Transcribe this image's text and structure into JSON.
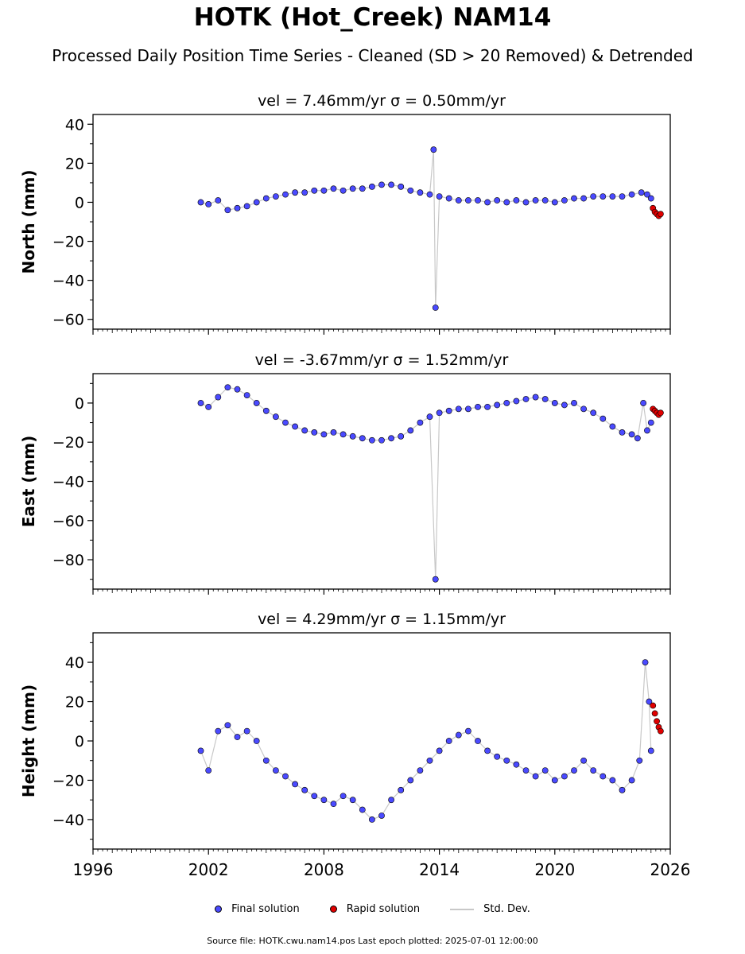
{
  "figure": {
    "title": "HOTK (Hot_Creek) NAM14",
    "subtitle": "Processed Daily Position Time Series - Cleaned (SD > 20 Removed) & Detrended",
    "footer": "Source file: HOTK.cwu.nam14.pos  Last epoch plotted: 2025-07-01 12:00:00"
  },
  "legend": {
    "final_label": "Final solution",
    "rapid_label": "Rapid solution",
    "sd_label": "Std. Dev.",
    "final_color": "#4a4aff",
    "rapid_color": "#e00000",
    "sd_color": "#c8c8c8"
  },
  "chart_data": [
    {
      "type": "scatter",
      "title": "vel = 7.46mm/yr   σ = 0.50mm/yr",
      "ylabel": "North (mm)",
      "xlim": [
        1996,
        2026
      ],
      "ylim": [
        -65,
        45
      ],
      "xticks": [
        1996,
        2002,
        2008,
        2014,
        2020,
        2026
      ],
      "yticks": [
        40,
        20,
        0,
        -20,
        -40,
        -60
      ],
      "series": [
        {
          "name": "Final solution",
          "x": [
            2001.6,
            2002.0,
            2002.5,
            2003.0,
            2003.5,
            2004.0,
            2004.5,
            2005.0,
            2005.5,
            2006.0,
            2006.5,
            2007.0,
            2007.5,
            2008.0,
            2008.5,
            2009.0,
            2009.5,
            2010.0,
            2010.5,
            2011.0,
            2011.5,
            2012.0,
            2012.5,
            2013.0,
            2013.5,
            2013.7,
            2013.8,
            2014.0,
            2014.5,
            2015.0,
            2015.5,
            2016.0,
            2016.5,
            2017.0,
            2017.5,
            2018.0,
            2018.5,
            2019.0,
            2019.5,
            2020.0,
            2020.5,
            2021.0,
            2021.5,
            2022.0,
            2022.5,
            2023.0,
            2023.5,
            2024.0,
            2024.5,
            2024.8,
            2025.0
          ],
          "y": [
            0,
            -1,
            1,
            -4,
            -3,
            -2,
            0,
            2,
            3,
            4,
            5,
            5,
            6,
            6,
            7,
            6,
            7,
            7,
            8,
            9,
            9,
            8,
            6,
            5,
            4,
            27,
            -54,
            3,
            2,
            1,
            1,
            1,
            0,
            1,
            0,
            1,
            0,
            1,
            1,
            0,
            1,
            2,
            2,
            3,
            3,
            3,
            3,
            4,
            5,
            4,
            2
          ]
        },
        {
          "name": "Rapid solution",
          "x": [
            2025.1,
            2025.2,
            2025.3,
            2025.4,
            2025.5
          ],
          "y": [
            -3,
            -5,
            -6,
            -7,
            -6
          ]
        }
      ]
    },
    {
      "type": "scatter",
      "title": "vel = -3.67mm/yr   σ = 1.52mm/yr",
      "ylabel": "East (mm)",
      "xlim": [
        1996,
        2026
      ],
      "ylim": [
        -95,
        15
      ],
      "xticks": [
        1996,
        2002,
        2008,
        2014,
        2020,
        2026
      ],
      "yticks": [
        0,
        -20,
        -40,
        -60,
        -80
      ],
      "series": [
        {
          "name": "Final solution",
          "x": [
            2001.6,
            2002.0,
            2002.5,
            2003.0,
            2003.5,
            2004.0,
            2004.5,
            2005.0,
            2005.5,
            2006.0,
            2006.5,
            2007.0,
            2007.5,
            2008.0,
            2008.5,
            2009.0,
            2009.5,
            2010.0,
            2010.5,
            2011.0,
            2011.5,
            2012.0,
            2012.5,
            2013.0,
            2013.5,
            2013.8,
            2014.0,
            2014.5,
            2015.0,
            2015.5,
            2016.0,
            2016.5,
            2017.0,
            2017.5,
            2018.0,
            2018.5,
            2019.0,
            2019.5,
            2020.0,
            2020.5,
            2021.0,
            2021.5,
            2022.0,
            2022.5,
            2023.0,
            2023.5,
            2024.0,
            2024.3,
            2024.6,
            2024.8,
            2025.0
          ],
          "y": [
            0,
            -2,
            3,
            8,
            7,
            4,
            0,
            -4,
            -7,
            -10,
            -12,
            -14,
            -15,
            -16,
            -15,
            -16,
            -17,
            -18,
            -19,
            -19,
            -18,
            -17,
            -14,
            -10,
            -7,
            -90,
            -5,
            -4,
            -3,
            -3,
            -2,
            -2,
            -1,
            0,
            1,
            2,
            3,
            2,
            0,
            -1,
            0,
            -3,
            -5,
            -8,
            -12,
            -15,
            -16,
            -18,
            0,
            -14,
            -10
          ]
        },
        {
          "name": "Rapid solution",
          "x": [
            2025.1,
            2025.2,
            2025.3,
            2025.4,
            2025.5
          ],
          "y": [
            -3,
            -4,
            -5,
            -6,
            -5
          ]
        }
      ]
    },
    {
      "type": "scatter",
      "title": "vel = 4.29mm/yr   σ = 1.15mm/yr",
      "ylabel": "Height (mm)",
      "xlim": [
        1996,
        2026
      ],
      "ylim": [
        -55,
        55
      ],
      "xticks": [
        1996,
        2002,
        2008,
        2014,
        2020,
        2026
      ],
      "yticks": [
        40,
        20,
        0,
        -20,
        -40
      ],
      "series": [
        {
          "name": "Final solution",
          "x": [
            2001.6,
            2002.0,
            2002.5,
            2003.0,
            2003.5,
            2004.0,
            2004.5,
            2005.0,
            2005.5,
            2006.0,
            2006.5,
            2007.0,
            2007.5,
            2008.0,
            2008.5,
            2009.0,
            2009.5,
            2010.0,
            2010.5,
            2011.0,
            2011.5,
            2012.0,
            2012.5,
            2013.0,
            2013.5,
            2014.0,
            2014.5,
            2015.0,
            2015.5,
            2016.0,
            2016.5,
            2017.0,
            2017.5,
            2018.0,
            2018.5,
            2019.0,
            2019.5,
            2020.0,
            2020.5,
            2021.0,
            2021.5,
            2022.0,
            2022.5,
            2023.0,
            2023.5,
            2024.0,
            2024.4,
            2024.7,
            2024.9,
            2025.0
          ],
          "y": [
            -5,
            -15,
            5,
            8,
            2,
            5,
            0,
            -10,
            -15,
            -18,
            -22,
            -25,
            -28,
            -30,
            -32,
            -28,
            -30,
            -35,
            -40,
            -38,
            -30,
            -25,
            -20,
            -15,
            -10,
            -5,
            0,
            3,
            5,
            0,
            -5,
            -8,
            -10,
            -12,
            -15,
            -18,
            -15,
            -20,
            -18,
            -15,
            -10,
            -15,
            -18,
            -20,
            -25,
            -20,
            -10,
            40,
            20,
            -5
          ]
        },
        {
          "name": "Rapid solution",
          "x": [
            2025.1,
            2025.2,
            2025.3,
            2025.4,
            2025.5
          ],
          "y": [
            18,
            14,
            10,
            7,
            5
          ]
        }
      ]
    }
  ]
}
